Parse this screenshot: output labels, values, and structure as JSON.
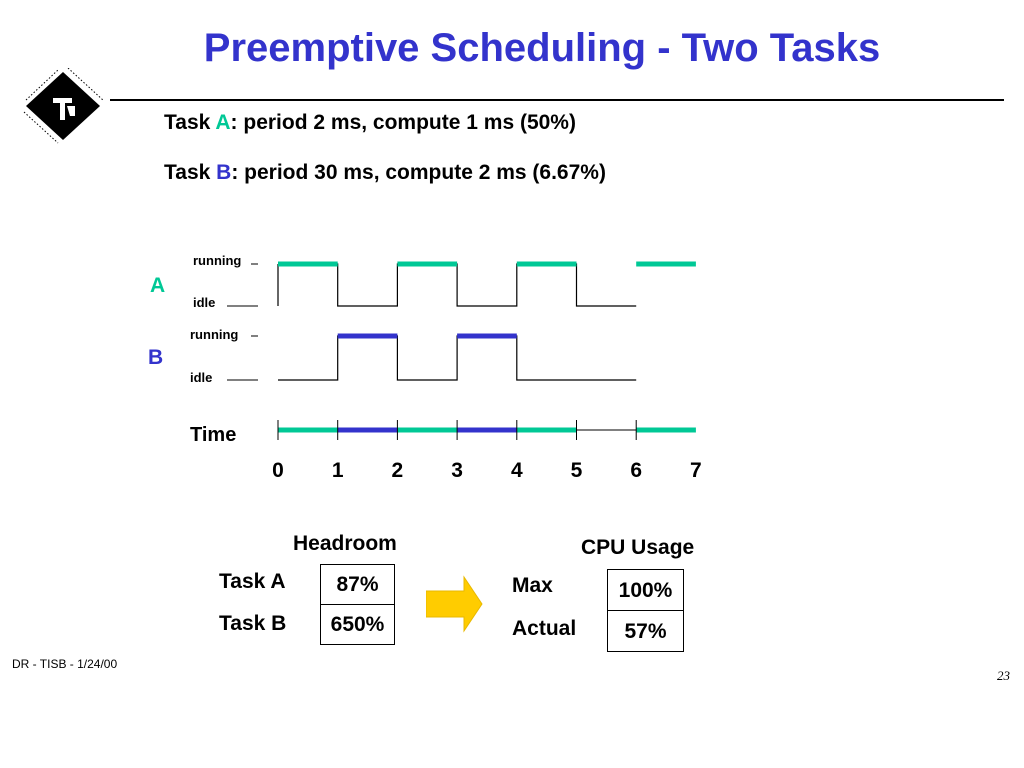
{
  "slide": {
    "title": "Preemptive Scheduling - Two Tasks",
    "footer_left": "DR - TISB - 1/24/00",
    "page_number": "23"
  },
  "tasks": {
    "a": {
      "prefix": "Task ",
      "letter": "A",
      "rest": ": period 2 ms, compute 1 ms (50%)",
      "color": "#00c896"
    },
    "b": {
      "prefix": "Task ",
      "letter": "B",
      "rest": ": period 30 ms, compute 2 ms (6.67%)",
      "color": "#3333cc"
    }
  },
  "timing": {
    "row_a_label": "A",
    "row_b_label": "B",
    "running_label": "running",
    "idle_label": "idle",
    "time_label": "Time",
    "ticks": [
      "0",
      "1",
      "2",
      "3",
      "4",
      "5",
      "6",
      "7"
    ],
    "task_a_running_intervals": [
      [
        0,
        1
      ],
      [
        2,
        3
      ],
      [
        4,
        5
      ],
      [
        6,
        7
      ]
    ],
    "task_b_running_intervals": [
      [
        1,
        2
      ],
      [
        3,
        4
      ]
    ],
    "cpu_timeline": [
      {
        "from": 0,
        "to": 1,
        "task": "A"
      },
      {
        "from": 1,
        "to": 2,
        "task": "B"
      },
      {
        "from": 2,
        "to": 3,
        "task": "A"
      },
      {
        "from": 3,
        "to": 4,
        "task": "B"
      },
      {
        "from": 4,
        "to": 5,
        "task": "A"
      },
      {
        "from": 5,
        "to": 6,
        "task": "idle"
      },
      {
        "from": 6,
        "to": 7,
        "task": "A"
      }
    ]
  },
  "headroom": {
    "title": "Headroom",
    "rows": [
      {
        "label": "Task A",
        "value": "87%"
      },
      {
        "label": "Task B",
        "value": "650%"
      }
    ]
  },
  "cpu_usage": {
    "title": "CPU Usage",
    "rows": [
      {
        "label": "Max",
        "value": "100%"
      },
      {
        "label": "Actual",
        "value": "57%"
      }
    ]
  },
  "colors": {
    "title": "#3333cc",
    "task_a": "#00c896",
    "task_b": "#3333cc",
    "arrow": "#ffcc00"
  }
}
